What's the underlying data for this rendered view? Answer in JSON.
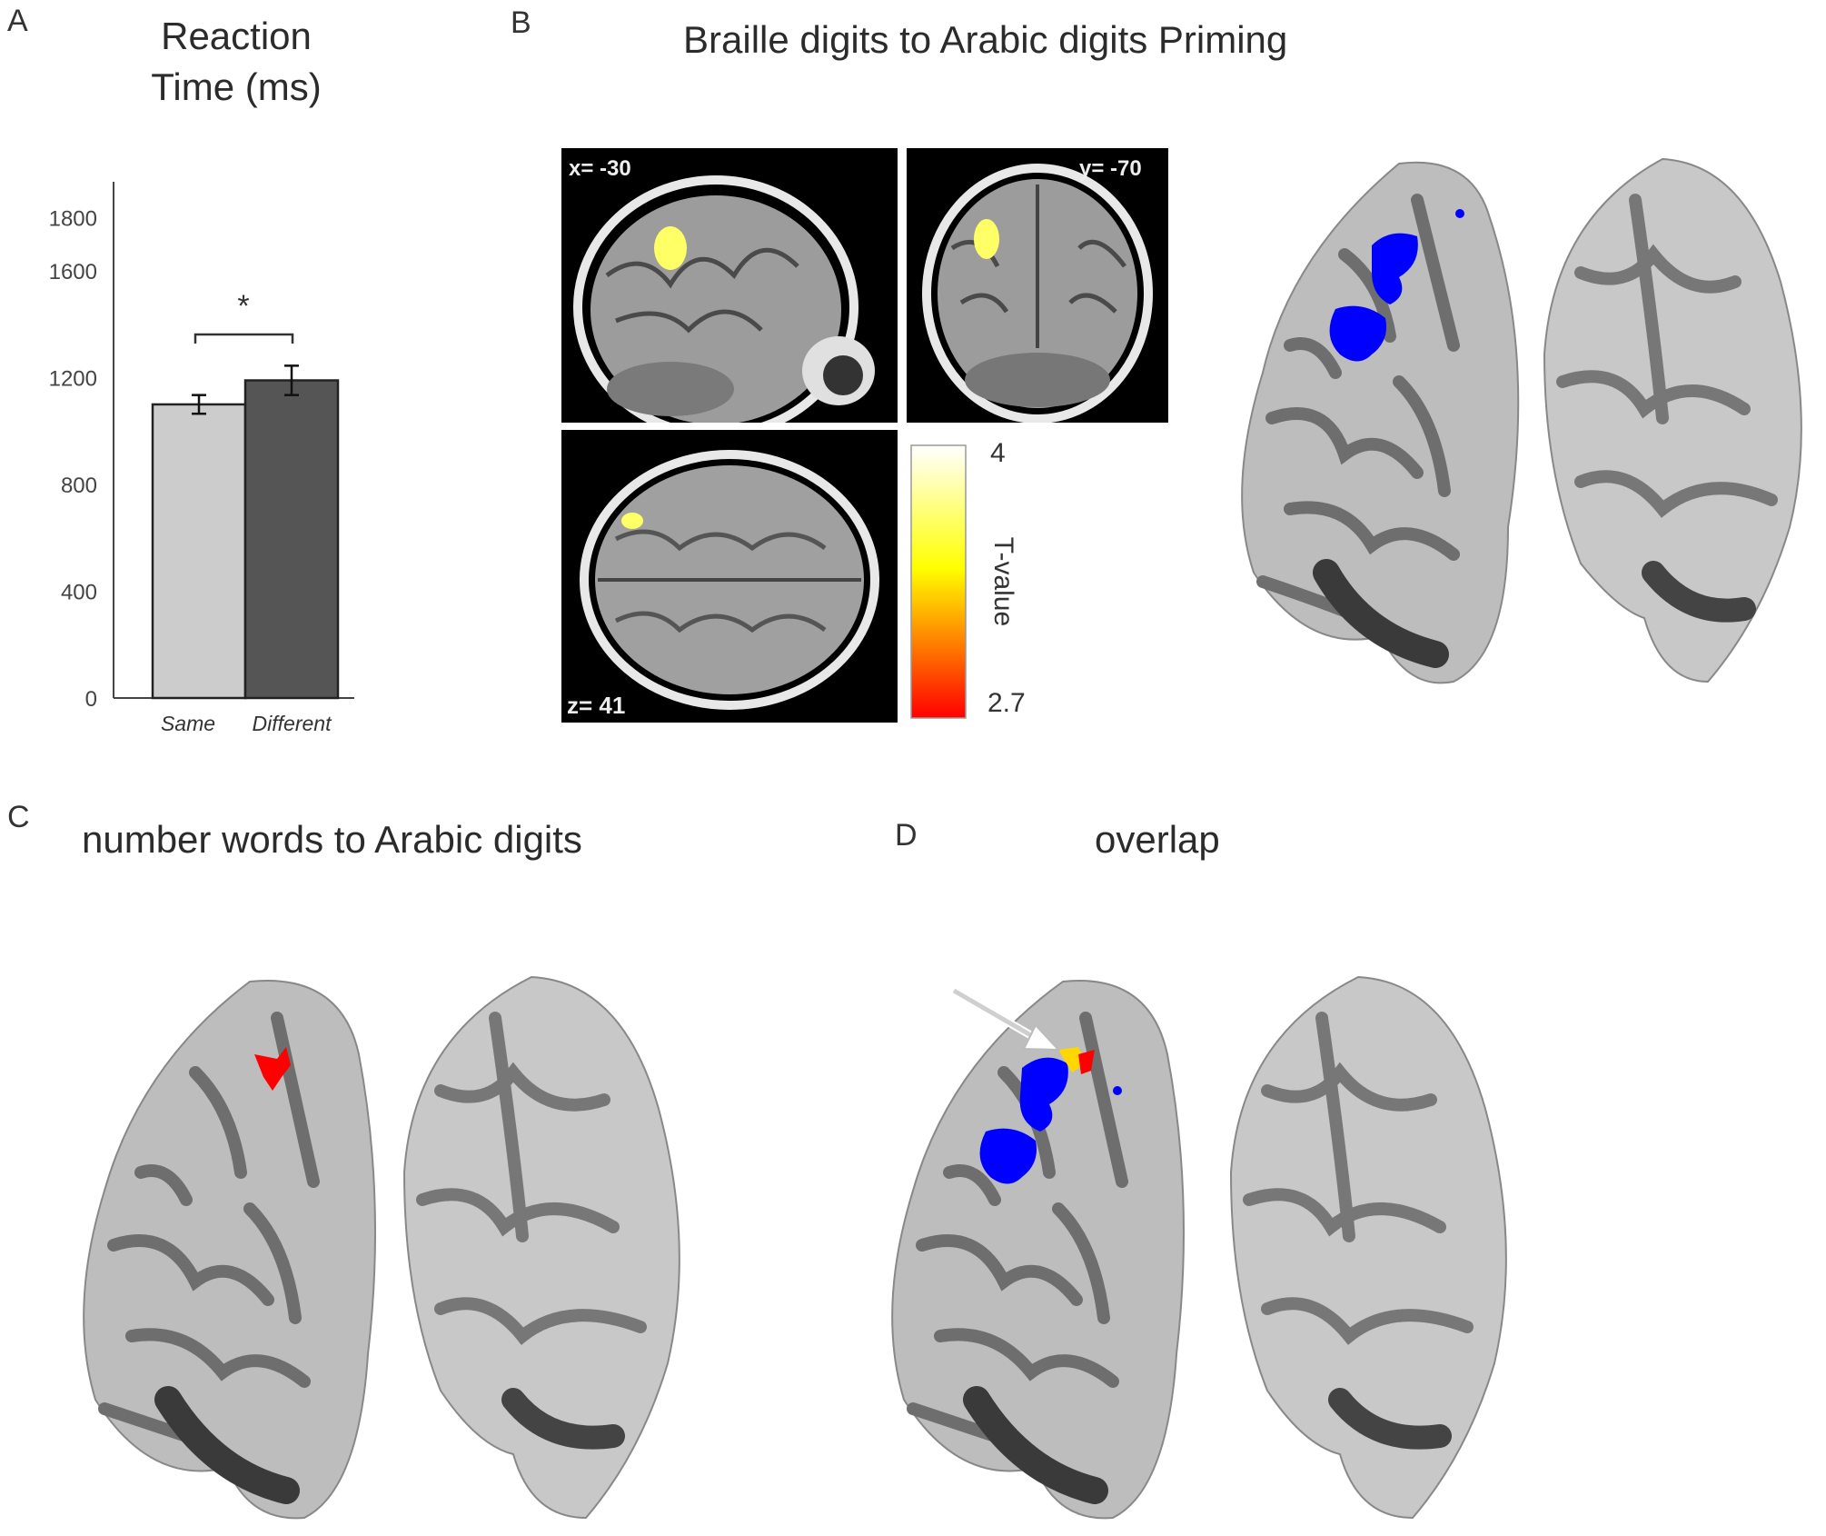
{
  "panels": {
    "A": {
      "letter": "A",
      "title_line1": "Reaction",
      "title_line2": "Time (ms)",
      "significance": "*"
    },
    "B": {
      "letter": "B",
      "title": "Braille digits to Arabic digits Priming",
      "slice_labels": {
        "sagittal": "x= -30",
        "coronal": "y= -70",
        "axial": "z= 41"
      },
      "colorbar": {
        "max_label": "4",
        "min_label": "2.7",
        "axis_label": "T-value",
        "color_top": "#ffffff",
        "color_mid": "#ffff00",
        "color_bottom": "#ff0000"
      },
      "activation_color": "#0000ff"
    },
    "C": {
      "letter": "C",
      "title": "number words to Arabic digits",
      "activation_color": "#ff0000"
    },
    "D": {
      "letter": "D",
      "title": "overlap",
      "colors": {
        "braille": "#0000ff",
        "words": "#ff0000",
        "overlap": "#ffd700"
      }
    }
  },
  "chart_data": {
    "type": "bar",
    "categories": [
      "Same",
      "Different"
    ],
    "values": [
      1100,
      1190
    ],
    "errors": [
      35,
      55
    ],
    "yticks": [
      0,
      400,
      800,
      1200,
      1600,
      1800
    ],
    "ylim": [
      0,
      1900
    ],
    "colors": [
      "#cccccc",
      "#555555"
    ],
    "title": "Reaction Time (ms)"
  }
}
